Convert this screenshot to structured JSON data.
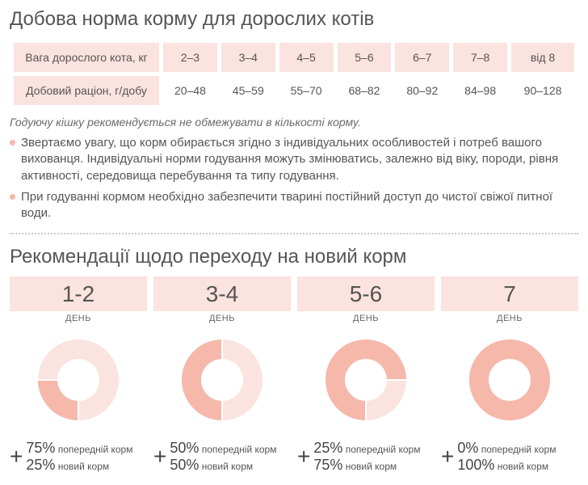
{
  "colors": {
    "header_bg": "#fbe3df",
    "donut_light": "#fbe3df",
    "donut_dark": "#f5b8ab",
    "donut_hole": "#ffffff",
    "bullet": "#f7b7ac",
    "text": "#555555"
  },
  "section1": {
    "title": "Добова норма корму для дорослих котів",
    "table": {
      "row1_label": "Вага дорослого кота, кг",
      "row2_label": "Добовий раціон, г/добу",
      "weights": [
        "2–3",
        "3–4",
        "4–5",
        "5–6",
        "6–7",
        "7–8",
        "від 8"
      ],
      "rations": [
        "20–48",
        "45–59",
        "55–70",
        "68–82",
        "80–92",
        "84–98",
        "90–128"
      ]
    },
    "note_italic": "Годуючу кішку рекомендується не обмежувати в кількості корму.",
    "bullets": [
      "Звертаємо увагу, що корм обирається згідно з індивідуальних особливостей і потреб вашого вихованця. Індивідуальні норми годування можуть змінюватись, залежно від віку, породи, рівня активності, середовища перебування та типу годування.",
      "При годуванні кормом необхідно забезпечити тварині постійний доступ до чистої свіжої питної води."
    ]
  },
  "section2": {
    "title": "Рекомендації щодо переходу на новий корм",
    "day_word": "ДЕНЬ",
    "old_food_label": "попередній корм",
    "new_food_label": "новий корм",
    "steps": [
      {
        "range": "1-2",
        "old_pct": 75,
        "new_pct": 25
      },
      {
        "range": "3-4",
        "old_pct": 50,
        "new_pct": 50
      },
      {
        "range": "5-6",
        "old_pct": 25,
        "new_pct": 75
      },
      {
        "range": "7",
        "old_pct": 0,
        "new_pct": 100
      }
    ],
    "donut": {
      "outer_r": 50,
      "inner_r": 26,
      "start_angle_deg": 90
    }
  }
}
